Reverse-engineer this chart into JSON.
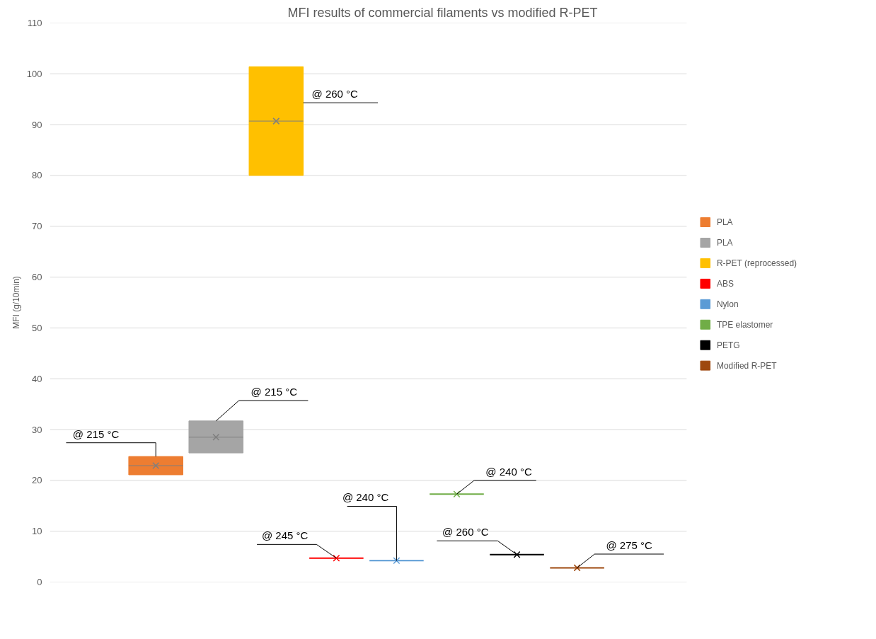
{
  "chart_data": {
    "type": "box",
    "title": "MFI results of commercial filaments vs modified R-PET",
    "ylabel": "MFI (g/10min)",
    "categories": [
      null
    ],
    "ylim": [
      0,
      110
    ],
    "yticks": [
      0,
      10,
      20,
      30,
      40,
      50,
      60,
      70,
      80,
      90,
      100,
      110
    ],
    "grid": "y",
    "legend": "right",
    "tick_labels": "y",
    "marker": "cross",
    "series": [
      {
        "name": "PLA",
        "color": "#ed7d31",
        "boxes": [
          {
            "low": 21.1,
            "q1": 21.1,
            "median": 22.9,
            "q3": 24.7,
            "high": 24.7,
            "mean": 22.9
          }
        ]
      },
      {
        "name": "PLA",
        "color": "#a5a5a5",
        "boxes": [
          {
            "low": 25.4,
            "q1": 25.4,
            "median": 28.5,
            "q3": 31.7,
            "high": 31.7,
            "mean": 28.5
          }
        ]
      },
      {
        "name": "R-PET (reprocessed)",
        "color": "#ffc000",
        "boxes": [
          {
            "low": 80.0,
            "q1": 80.0,
            "median": 90.7,
            "q3": 101.4,
            "high": 101.4,
            "mean": 90.7
          }
        ]
      },
      {
        "name": "ABS",
        "color": "#ff0000",
        "boxes": [
          {
            "low": 4.7,
            "q1": 4.7,
            "median": 4.7,
            "q3": 4.7,
            "high": 4.7,
            "mean": 4.7
          }
        ]
      },
      {
        "name": "Nylon",
        "color": "#5b9bd5",
        "boxes": [
          {
            "low": 4.2,
            "q1": 4.2,
            "median": 4.2,
            "q3": 4.2,
            "high": 4.2,
            "mean": 4.2
          }
        ]
      },
      {
        "name": "TPE elastomer",
        "color": "#70ad47",
        "boxes": [
          {
            "low": 17.3,
            "q1": 17.3,
            "median": 17.3,
            "q3": 17.3,
            "high": 17.3,
            "mean": 17.3
          }
        ]
      },
      {
        "name": "PETG",
        "color": "#000000",
        "boxes": [
          {
            "low": 5.4,
            "q1": 5.4,
            "median": 5.4,
            "q3": 5.4,
            "high": 5.4,
            "mean": 5.4
          }
        ]
      },
      {
        "name": "Modified R-PET",
        "color": "#9e480e",
        "boxes": [
          {
            "low": 2.8,
            "q1": 2.8,
            "median": 2.8,
            "q3": 2.8,
            "high": 2.8,
            "mean": 2.8
          }
        ]
      }
    ],
    "annotations": [
      "@ 215 °C",
      "@ 215 °C",
      "@ 260 °C",
      "@ 245 °C",
      "@ 240 °C",
      "@ 240 °C",
      "@ 260 °C",
      "@ 275 °C"
    ]
  }
}
